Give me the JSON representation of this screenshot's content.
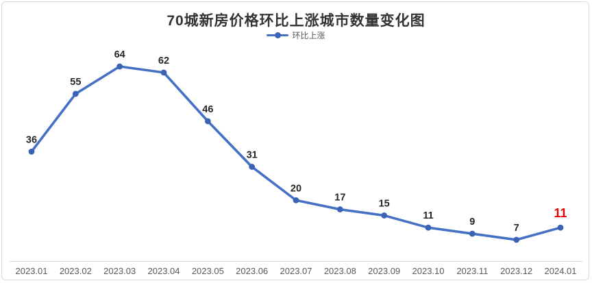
{
  "header": {
    "title": "70城新房价格环比上涨城市数量变化图"
  },
  "legend": {
    "label": "环比上涨"
  },
  "chart_data": {
    "type": "line",
    "title": "70城新房价格环比上涨城市数量变化图",
    "categories": [
      "2023.01",
      "2023.02",
      "2023.03",
      "2023.04",
      "2023.05",
      "2023.06",
      "2023.07",
      "2023.08",
      "2023.09",
      "2023.10",
      "2023.11",
      "2023.12",
      "2024.01"
    ],
    "series": [
      {
        "name": "环比上涨",
        "values": [
          36,
          55,
          64,
          62,
          46,
          31,
          20,
          17,
          15,
          11,
          9,
          7,
          11
        ]
      }
    ],
    "xlabel": "",
    "ylabel": "",
    "ylim": [
      0,
      68
    ],
    "grid": false,
    "legend_position": "top-center",
    "data_labels_visible": true,
    "highlight_last_point": true,
    "colors": {
      "line": "#4471C4",
      "marker": "#3B63B5",
      "data_label": "#262626",
      "last_data_label": "#E60000",
      "axis_line": "#D9D9D9",
      "axis_tick_label": "#595959",
      "title": "#333333",
      "background": "#FFFFFF",
      "border": "#D9D9D9"
    }
  }
}
